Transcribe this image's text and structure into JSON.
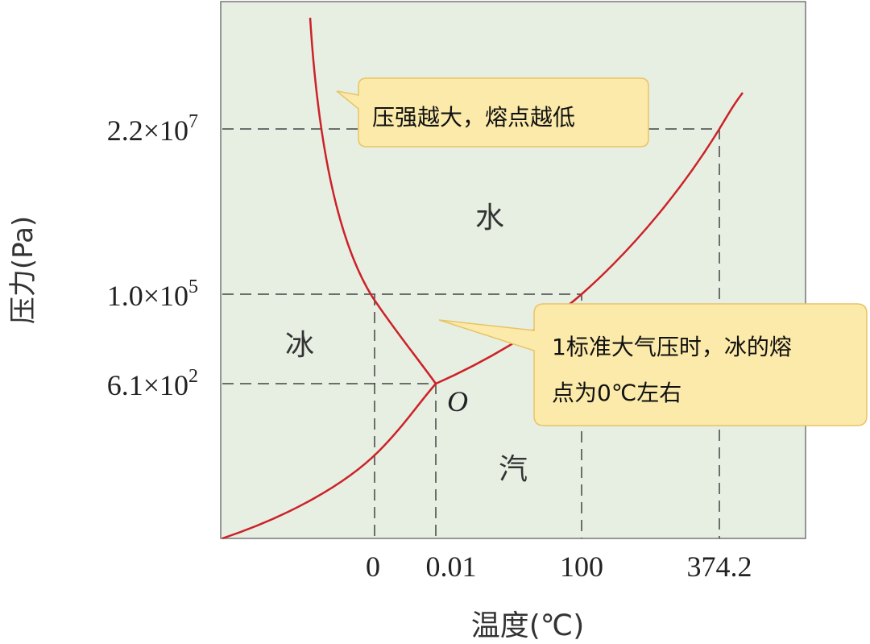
{
  "axes": {
    "y_label": "压力(Pa)",
    "x_label": "温度(℃)",
    "y_ticks": [
      {
        "mantissa": "2.2×10",
        "exponent": "7"
      },
      {
        "mantissa": "1.0×10",
        "exponent": "5"
      },
      {
        "mantissa": "6.1×10",
        "exponent": "2"
      }
    ],
    "x_ticks": [
      "0",
      "0.01",
      "100",
      "374.2"
    ]
  },
  "regions": {
    "water": "水",
    "ice": "冰",
    "vapor": "汽",
    "triple_point": "O"
  },
  "callouts": [
    {
      "lines": [
        "压强越大，熔点越低"
      ]
    },
    {
      "lines": [
        "1标准大气压时，冰的熔",
        "点为0℃左右"
      ]
    }
  ]
}
